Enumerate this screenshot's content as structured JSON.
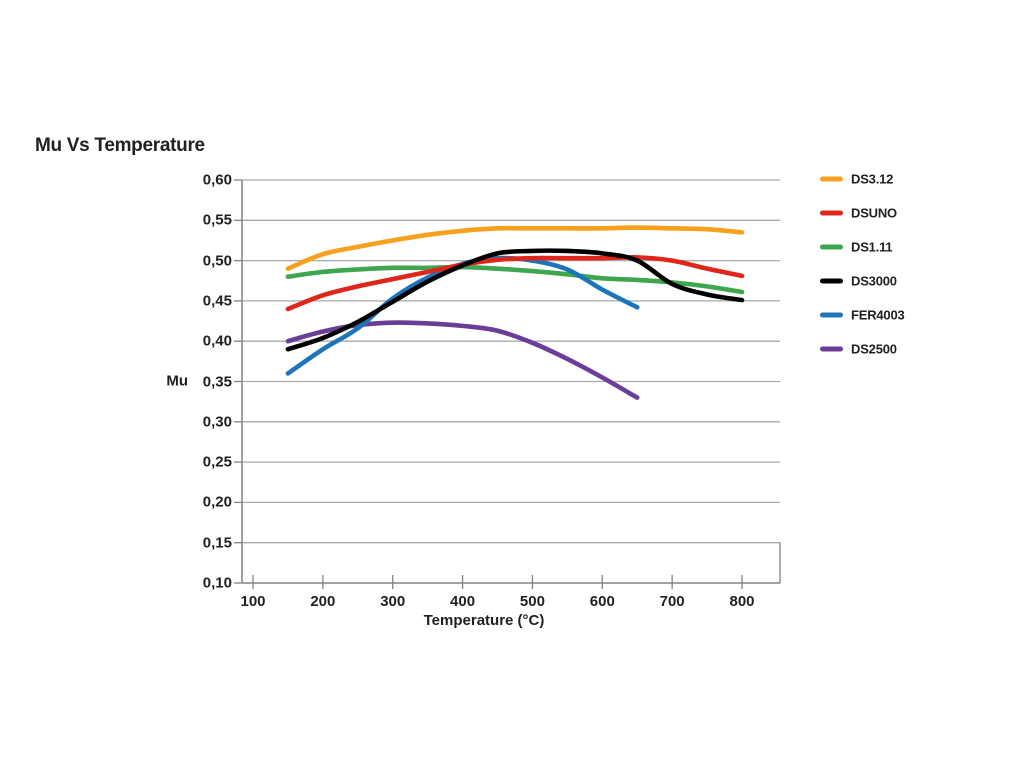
{
  "title": "Mu Vs Temperature",
  "colors": {
    "text": "#231f20",
    "grid": "#a7a9ac",
    "axis": "#808285",
    "background": "#ffffff"
  },
  "chart_data": {
    "type": "line",
    "title": "Mu Vs Temperature",
    "xlabel": "Temperature (°C)",
    "ylabel": "Mu",
    "xlim": [
      100,
      800
    ],
    "ylim": [
      0.1,
      0.6
    ],
    "x_ticks": [
      100,
      200,
      300,
      400,
      500,
      600,
      700,
      800
    ],
    "y_ticks": [
      0.1,
      0.15,
      0.2,
      0.25,
      0.3,
      0.35,
      0.4,
      0.45,
      0.5,
      0.55,
      0.6
    ],
    "decimal_separator": ",",
    "grid": "horizontal",
    "legend_position": "right",
    "series": [
      {
        "name": "DS3.12",
        "color": "#f7a11c",
        "x": [
          150,
          200,
          250,
          300,
          350,
          400,
          450,
          500,
          550,
          600,
          650,
          700,
          750,
          800
        ],
        "y": [
          0.49,
          0.508,
          0.517,
          0.525,
          0.532,
          0.537,
          0.54,
          0.54,
          0.54,
          0.54,
          0.541,
          0.54,
          0.539,
          0.535
        ]
      },
      {
        "name": "DSUNO",
        "color": "#e0251b",
        "x": [
          150,
          200,
          250,
          300,
          350,
          400,
          450,
          500,
          550,
          600,
          650,
          700,
          750,
          800
        ],
        "y": [
          0.44,
          0.457,
          0.468,
          0.477,
          0.486,
          0.495,
          0.501,
          0.503,
          0.503,
          0.503,
          0.504,
          0.5,
          0.49,
          0.481
        ]
      },
      {
        "name": "DS1.11",
        "color": "#3ea64f",
        "x": [
          150,
          200,
          250,
          300,
          350,
          400,
          450,
          500,
          550,
          600,
          650,
          700,
          750,
          800
        ],
        "y": [
          0.48,
          0.486,
          0.489,
          0.491,
          0.491,
          0.492,
          0.49,
          0.487,
          0.483,
          0.478,
          0.476,
          0.473,
          0.468,
          0.461
        ]
      },
      {
        "name": "DS3000",
        "color": "#000000",
        "x": [
          150,
          200,
          250,
          300,
          350,
          400,
          450,
          500,
          550,
          600,
          650,
          700,
          750,
          800
        ],
        "y": [
          0.39,
          0.404,
          0.424,
          0.449,
          0.474,
          0.494,
          0.509,
          0.512,
          0.512,
          0.509,
          0.5,
          0.471,
          0.458,
          0.451
        ]
      },
      {
        "name": "FER4003",
        "color": "#1c75bb",
        "x": [
          150,
          200,
          250,
          300,
          350,
          400,
          450,
          500,
          550,
          600,
          650
        ],
        "y": [
          0.36,
          0.39,
          0.416,
          0.453,
          0.479,
          0.496,
          0.503,
          0.5,
          0.489,
          0.464,
          0.442
        ]
      },
      {
        "name": "DS2500",
        "color": "#6a3e98",
        "x": [
          150,
          200,
          250,
          300,
          350,
          400,
          450,
          500,
          550,
          600,
          650
        ],
        "y": [
          0.4,
          0.412,
          0.42,
          0.423,
          0.422,
          0.419,
          0.413,
          0.398,
          0.378,
          0.355,
          0.33
        ]
      }
    ]
  }
}
